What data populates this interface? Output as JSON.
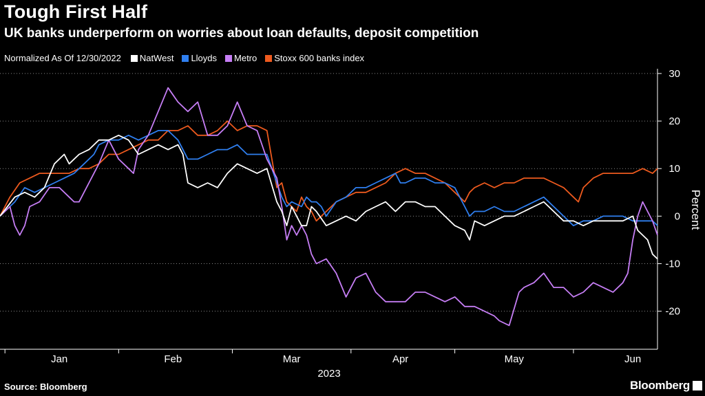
{
  "header": {
    "title": "Tough First Half",
    "subtitle": "UK banks underperform on worries about loan defaults, deposit competition"
  },
  "legend": {
    "note": "Normalized As Of 12/30/2022"
  },
  "footer": {
    "source": "Source: Bloomberg",
    "brand": "Bloomberg"
  },
  "chart_data": {
    "type": "line",
    "ylabel": "Percent",
    "xlabel": "2023",
    "ylim": [
      -28,
      31
    ],
    "yticks": [
      30,
      20,
      10,
      0,
      -10,
      -20
    ],
    "xlim": [
      0,
      133
    ],
    "month_ticks": [
      {
        "label": "Jan",
        "x": 12
      },
      {
        "label": "Feb",
        "x": 35
      },
      {
        "label": "Mar",
        "x": 59
      },
      {
        "label": "Apr",
        "x": 81
      },
      {
        "label": "May",
        "x": 104
      },
      {
        "label": "Jun",
        "x": 128
      }
    ],
    "month_boundaries": [
      1,
      24,
      47,
      71,
      92,
      116
    ],
    "gridlines": "dotted horizontal",
    "legend_position": "top",
    "series": [
      {
        "name": "NatWest",
        "color": "#ffffff",
        "points": [
          [
            0,
            0
          ],
          [
            3,
            4
          ],
          [
            5,
            5
          ],
          [
            7,
            4
          ],
          [
            9,
            6
          ],
          [
            11,
            11
          ],
          [
            13,
            13
          ],
          [
            14,
            11
          ],
          [
            16,
            13
          ],
          [
            18,
            14
          ],
          [
            20,
            16
          ],
          [
            22,
            16
          ],
          [
            24,
            17
          ],
          [
            26,
            16
          ],
          [
            28,
            13
          ],
          [
            30,
            14
          ],
          [
            32,
            15
          ],
          [
            34,
            14
          ],
          [
            36,
            15
          ],
          [
            37,
            13
          ],
          [
            38,
            7
          ],
          [
            40,
            6
          ],
          [
            42,
            7
          ],
          [
            44,
            6
          ],
          [
            46,
            9
          ],
          [
            48,
            11
          ],
          [
            50,
            10
          ],
          [
            52,
            9
          ],
          [
            54,
            10
          ],
          [
            56,
            3
          ],
          [
            57,
            1
          ],
          [
            58,
            -2
          ],
          [
            59,
            2
          ],
          [
            61,
            -2
          ],
          [
            62,
            -2
          ],
          [
            63,
            2
          ],
          [
            64,
            1
          ],
          [
            66,
            -2
          ],
          [
            68,
            -1
          ],
          [
            70,
            0
          ],
          [
            72,
            -1
          ],
          [
            74,
            1
          ],
          [
            76,
            2
          ],
          [
            78,
            3
          ],
          [
            80,
            1
          ],
          [
            82,
            3
          ],
          [
            84,
            3
          ],
          [
            86,
            2
          ],
          [
            88,
            2
          ],
          [
            90,
            0
          ],
          [
            92,
            -2
          ],
          [
            94,
            -3
          ],
          [
            95,
            -5
          ],
          [
            96,
            -1
          ],
          [
            98,
            -2
          ],
          [
            100,
            -1
          ],
          [
            102,
            0
          ],
          [
            104,
            0
          ],
          [
            106,
            1
          ],
          [
            108,
            2
          ],
          [
            110,
            3
          ],
          [
            112,
            1
          ],
          [
            114,
            -1
          ],
          [
            116,
            -1
          ],
          [
            118,
            -2
          ],
          [
            120,
            -1
          ],
          [
            122,
            -1
          ],
          [
            124,
            -1
          ],
          [
            126,
            -1
          ],
          [
            128,
            0
          ],
          [
            129,
            -3
          ],
          [
            131,
            -5
          ],
          [
            132,
            -8
          ],
          [
            133,
            -9
          ]
        ]
      },
      {
        "name": "Lloyds",
        "color": "#2f7ff0",
        "points": [
          [
            0,
            0
          ],
          [
            3,
            3
          ],
          [
            5,
            6
          ],
          [
            7,
            5
          ],
          [
            9,
            6
          ],
          [
            11,
            7
          ],
          [
            13,
            8
          ],
          [
            15,
            9
          ],
          [
            17,
            11
          ],
          [
            19,
            13
          ],
          [
            20,
            15
          ],
          [
            22,
            16
          ],
          [
            24,
            16
          ],
          [
            26,
            17
          ],
          [
            28,
            16
          ],
          [
            30,
            17
          ],
          [
            32,
            18
          ],
          [
            34,
            18
          ],
          [
            36,
            16
          ],
          [
            37,
            14
          ],
          [
            38,
            12
          ],
          [
            40,
            12
          ],
          [
            42,
            13
          ],
          [
            44,
            14
          ],
          [
            46,
            14
          ],
          [
            48,
            15
          ],
          [
            50,
            13
          ],
          [
            52,
            13
          ],
          [
            54,
            13
          ],
          [
            56,
            7
          ],
          [
            57,
            4
          ],
          [
            58,
            2
          ],
          [
            59,
            3
          ],
          [
            61,
            2
          ],
          [
            62,
            4
          ],
          [
            63,
            3
          ],
          [
            64,
            3
          ],
          [
            65,
            2
          ],
          [
            66,
            0
          ],
          [
            68,
            3
          ],
          [
            70,
            4
          ],
          [
            72,
            6
          ],
          [
            74,
            6
          ],
          [
            76,
            7
          ],
          [
            78,
            8
          ],
          [
            80,
            9
          ],
          [
            81,
            7
          ],
          [
            82,
            7
          ],
          [
            84,
            8
          ],
          [
            86,
            8
          ],
          [
            88,
            7
          ],
          [
            90,
            7
          ],
          [
            92,
            6
          ],
          [
            94,
            2
          ],
          [
            95,
            0
          ],
          [
            96,
            1
          ],
          [
            98,
            1
          ],
          [
            100,
            2
          ],
          [
            102,
            1
          ],
          [
            104,
            1
          ],
          [
            106,
            2
          ],
          [
            108,
            3
          ],
          [
            110,
            4
          ],
          [
            112,
            2
          ],
          [
            114,
            0
          ],
          [
            116,
            -2
          ],
          [
            118,
            -1
          ],
          [
            120,
            -1
          ],
          [
            122,
            0
          ],
          [
            124,
            0
          ],
          [
            126,
            0
          ],
          [
            128,
            -1
          ],
          [
            130,
            -1
          ],
          [
            132,
            -1
          ],
          [
            133,
            -2
          ]
        ]
      },
      {
        "name": "Metro",
        "color": "#c67ef5",
        "points": [
          [
            0,
            0
          ],
          [
            2,
            2
          ],
          [
            3,
            -2
          ],
          [
            4,
            -4
          ],
          [
            5,
            -2
          ],
          [
            6,
            2
          ],
          [
            8,
            3
          ],
          [
            10,
            6
          ],
          [
            12,
            6
          ],
          [
            14,
            4
          ],
          [
            15,
            3
          ],
          [
            16,
            3
          ],
          [
            18,
            7
          ],
          [
            20,
            11
          ],
          [
            22,
            16
          ],
          [
            24,
            12
          ],
          [
            26,
            10
          ],
          [
            27,
            9
          ],
          [
            28,
            14
          ],
          [
            30,
            17
          ],
          [
            32,
            22
          ],
          [
            34,
            27
          ],
          [
            36,
            24
          ],
          [
            38,
            22
          ],
          [
            40,
            24
          ],
          [
            42,
            17
          ],
          [
            44,
            17
          ],
          [
            46,
            19
          ],
          [
            48,
            24
          ],
          [
            50,
            19
          ],
          [
            52,
            18
          ],
          [
            54,
            12
          ],
          [
            56,
            8
          ],
          [
            57,
            2
          ],
          [
            58,
            -5
          ],
          [
            59,
            -2
          ],
          [
            60,
            -4
          ],
          [
            61,
            -2
          ],
          [
            62,
            -4
          ],
          [
            63,
            -8
          ],
          [
            64,
            -10
          ],
          [
            66,
            -9
          ],
          [
            68,
            -12
          ],
          [
            70,
            -17
          ],
          [
            72,
            -13
          ],
          [
            74,
            -12
          ],
          [
            76,
            -16
          ],
          [
            78,
            -18
          ],
          [
            80,
            -18
          ],
          [
            82,
            -18
          ],
          [
            84,
            -16
          ],
          [
            86,
            -16
          ],
          [
            88,
            -17
          ],
          [
            90,
            -18
          ],
          [
            92,
            -17
          ],
          [
            94,
            -19
          ],
          [
            96,
            -19
          ],
          [
            98,
            -20
          ],
          [
            100,
            -21
          ],
          [
            101,
            -22
          ],
          [
            103,
            -23
          ],
          [
            105,
            -16
          ],
          [
            106,
            -15
          ],
          [
            108,
            -14
          ],
          [
            110,
            -12
          ],
          [
            112,
            -15
          ],
          [
            114,
            -15
          ],
          [
            116,
            -17
          ],
          [
            118,
            -16
          ],
          [
            120,
            -14
          ],
          [
            122,
            -15
          ],
          [
            124,
            -16
          ],
          [
            126,
            -14
          ],
          [
            127,
            -12
          ],
          [
            128,
            -5
          ],
          [
            129,
            0
          ],
          [
            130,
            3
          ],
          [
            131,
            1
          ],
          [
            132,
            -1
          ],
          [
            133,
            -4
          ]
        ]
      },
      {
        "name": "Stoxx 600 banks index",
        "color": "#ee5a1e",
        "points": [
          [
            0,
            0
          ],
          [
            2,
            4
          ],
          [
            4,
            7
          ],
          [
            6,
            8
          ],
          [
            8,
            9
          ],
          [
            10,
            9
          ],
          [
            12,
            9
          ],
          [
            14,
            9
          ],
          [
            16,
            10
          ],
          [
            18,
            10
          ],
          [
            20,
            11
          ],
          [
            22,
            13
          ],
          [
            24,
            13
          ],
          [
            26,
            14
          ],
          [
            28,
            15
          ],
          [
            30,
            16
          ],
          [
            32,
            16
          ],
          [
            34,
            18
          ],
          [
            36,
            18
          ],
          [
            38,
            19
          ],
          [
            40,
            17
          ],
          [
            42,
            17
          ],
          [
            44,
            18
          ],
          [
            46,
            20
          ],
          [
            48,
            18
          ],
          [
            50,
            19
          ],
          [
            52,
            19
          ],
          [
            54,
            18
          ],
          [
            56,
            6
          ],
          [
            57,
            7
          ],
          [
            58,
            3
          ],
          [
            59,
            2
          ],
          [
            60,
            1
          ],
          [
            61,
            4
          ],
          [
            62,
            2
          ],
          [
            63,
            1
          ],
          [
            64,
            -1
          ],
          [
            66,
            1
          ],
          [
            68,
            3
          ],
          [
            70,
            4
          ],
          [
            72,
            5
          ],
          [
            74,
            5
          ],
          [
            76,
            6
          ],
          [
            78,
            7
          ],
          [
            80,
            9
          ],
          [
            82,
            10
          ],
          [
            84,
            9
          ],
          [
            86,
            9
          ],
          [
            88,
            8
          ],
          [
            90,
            7
          ],
          [
            92,
            5
          ],
          [
            94,
            3
          ],
          [
            95,
            5
          ],
          [
            96,
            6
          ],
          [
            98,
            7
          ],
          [
            100,
            6
          ],
          [
            102,
            7
          ],
          [
            104,
            7
          ],
          [
            106,
            8
          ],
          [
            108,
            8
          ],
          [
            110,
            8
          ],
          [
            112,
            7
          ],
          [
            114,
            6
          ],
          [
            116,
            4
          ],
          [
            117,
            3
          ],
          [
            118,
            6
          ],
          [
            120,
            8
          ],
          [
            122,
            9
          ],
          [
            124,
            9
          ],
          [
            126,
            9
          ],
          [
            128,
            9
          ],
          [
            130,
            10
          ],
          [
            132,
            9
          ],
          [
            133,
            10
          ]
        ]
      }
    ]
  }
}
